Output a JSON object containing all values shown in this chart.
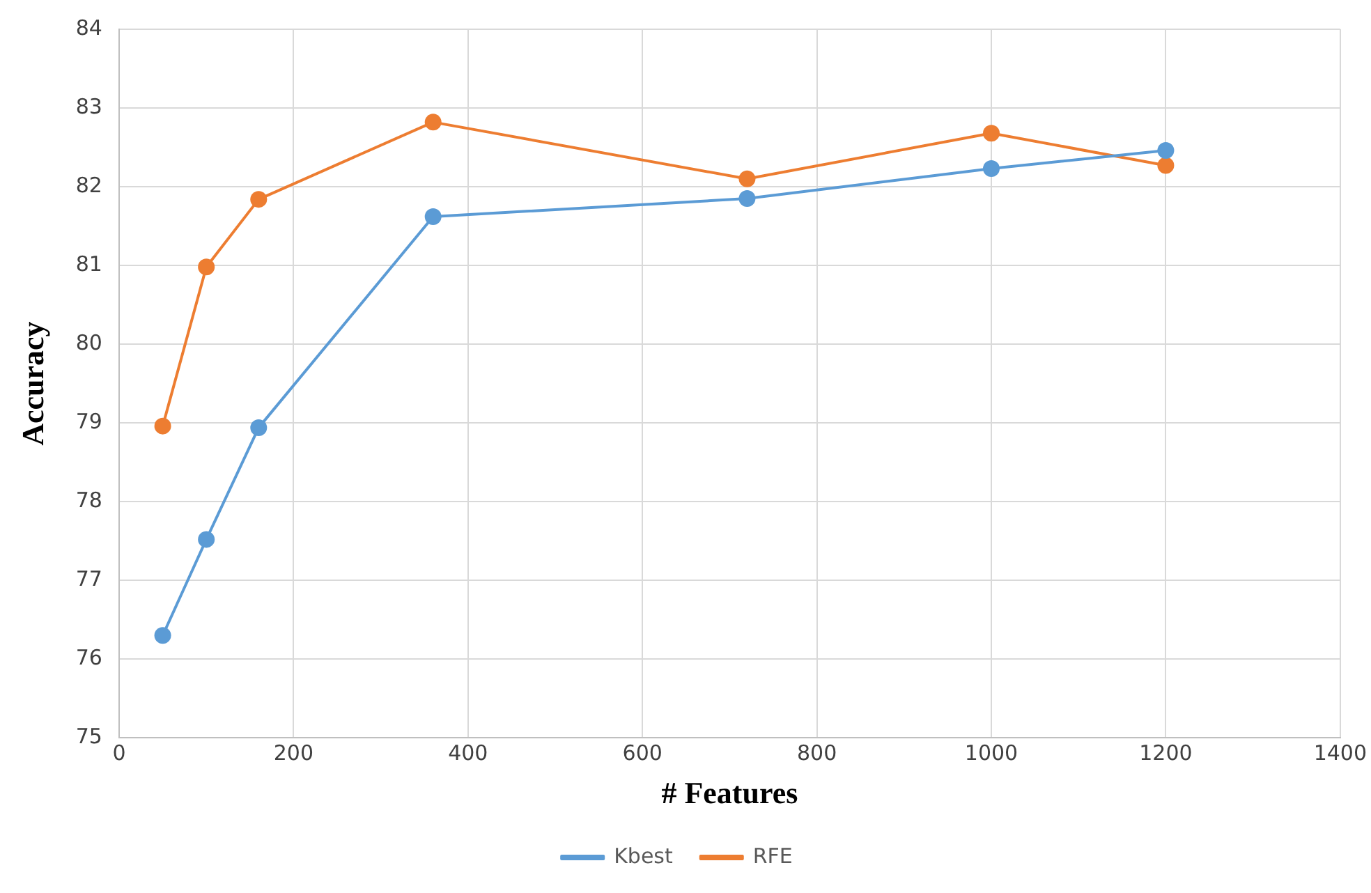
{
  "chart_data": {
    "type": "line",
    "xlabel": "# Features",
    "ylabel": "Accuracy",
    "x": [
      50,
      100,
      160,
      360,
      720,
      1000,
      1200
    ],
    "series": [
      {
        "name": "Kbest",
        "color": "#5b9bd5",
        "values": [
          76.3,
          77.52,
          78.94,
          81.62,
          81.85,
          82.23,
          82.46
        ]
      },
      {
        "name": "RFE",
        "color": "#ed7d31",
        "values": [
          78.96,
          80.98,
          81.84,
          82.82,
          82.1,
          82.68,
          82.27
        ]
      }
    ],
    "xlim": [
      0,
      1400
    ],
    "xticks": [
      0,
      200,
      400,
      600,
      800,
      1000,
      1200,
      1400
    ],
    "ylim": [
      75,
      84
    ],
    "yticks": [
      75,
      76,
      77,
      78,
      79,
      80,
      81,
      82,
      83,
      84
    ],
    "grid": true,
    "legend": "bottom",
    "marker": "circle",
    "line_style": "solid"
  }
}
